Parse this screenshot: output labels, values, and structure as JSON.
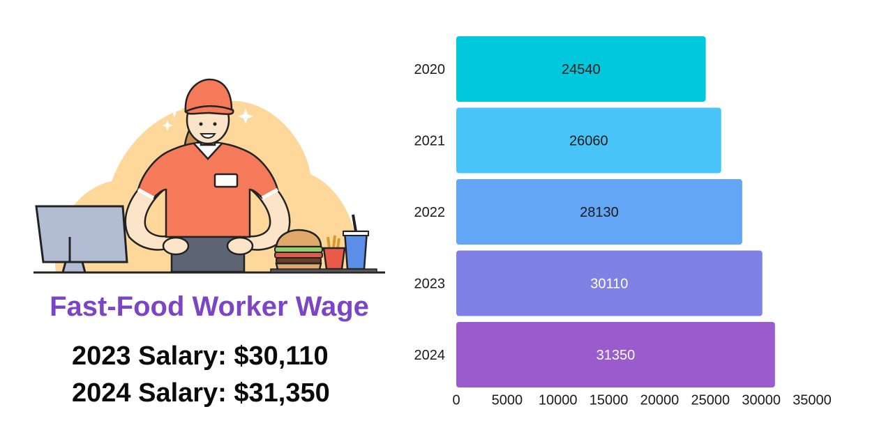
{
  "title": "Fast-Food Worker Wage",
  "salaries": [
    "2023 Salary: $30,110",
    "2024 Salary: $31,350"
  ],
  "chart_data": {
    "type": "bar",
    "orientation": "horizontal",
    "categories": [
      "2020",
      "2021",
      "2022",
      "2023",
      "2024"
    ],
    "values": [
      24540,
      26060,
      28130,
      30110,
      31350
    ],
    "data_labels": [
      "24540",
      "26060",
      "28130",
      "30110",
      "31350"
    ],
    "bar_colors": [
      "#00c8dc",
      "#48c4f8",
      "#64a6f6",
      "#7f82e4",
      "#9a5ccc"
    ],
    "label_colors": [
      "#1a1a1a",
      "#1a1a1a",
      "#1a1a1a",
      "#ffffff",
      "#ffffff"
    ],
    "xlim": [
      0,
      35000
    ],
    "x_ticks": [
      "0",
      "5000",
      "10000",
      "15000",
      "20000",
      "25000",
      "30000",
      "35000"
    ],
    "grid": false,
    "xlabel": "",
    "ylabel": ""
  }
}
